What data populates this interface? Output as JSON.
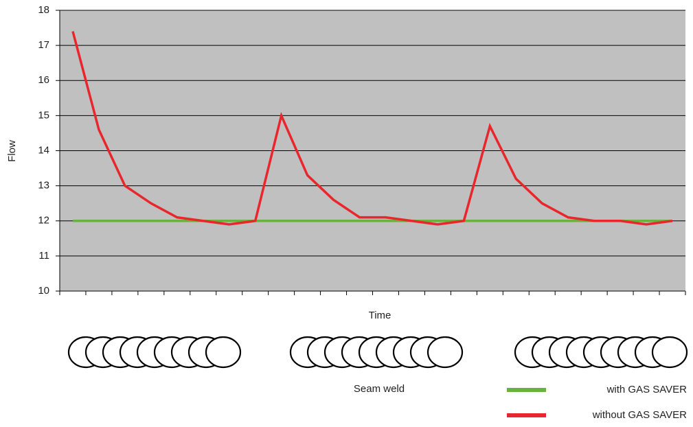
{
  "chart_data": {
    "type": "line",
    "y_label": "Flow",
    "x_label": "Time",
    "annotation": "Seam weld",
    "categories": [
      null,
      null,
      null,
      null,
      null,
      null,
      null,
      null,
      null,
      null,
      null,
      null,
      null,
      null,
      null,
      null,
      null,
      null,
      null,
      null,
      null,
      null,
      null,
      null
    ],
    "series": [
      {
        "name": "with GAS SAVER",
        "color": "#6ab23e",
        "values": [
          12,
          12,
          12,
          12,
          12,
          12,
          12,
          12,
          12,
          12,
          12,
          12,
          12,
          12,
          12,
          12,
          12,
          12,
          12,
          12,
          12,
          12,
          12,
          12
        ]
      },
      {
        "name": "without GAS SAVER",
        "color": "#e8262b",
        "values": [
          17.4,
          14.6,
          13.0,
          12.5,
          12.1,
          12.0,
          11.9,
          12.0,
          15.0,
          13.3,
          12.6,
          12.1,
          12.1,
          12.0,
          11.9,
          12.0,
          14.7,
          13.2,
          12.5,
          12.1,
          12.0,
          12.0,
          11.9,
          12.0
        ]
      }
    ],
    "ylim": [
      10,
      18
    ],
    "yticks": [
      10,
      11,
      12,
      13,
      14,
      15,
      16,
      17,
      18
    ],
    "grid": true
  }
}
